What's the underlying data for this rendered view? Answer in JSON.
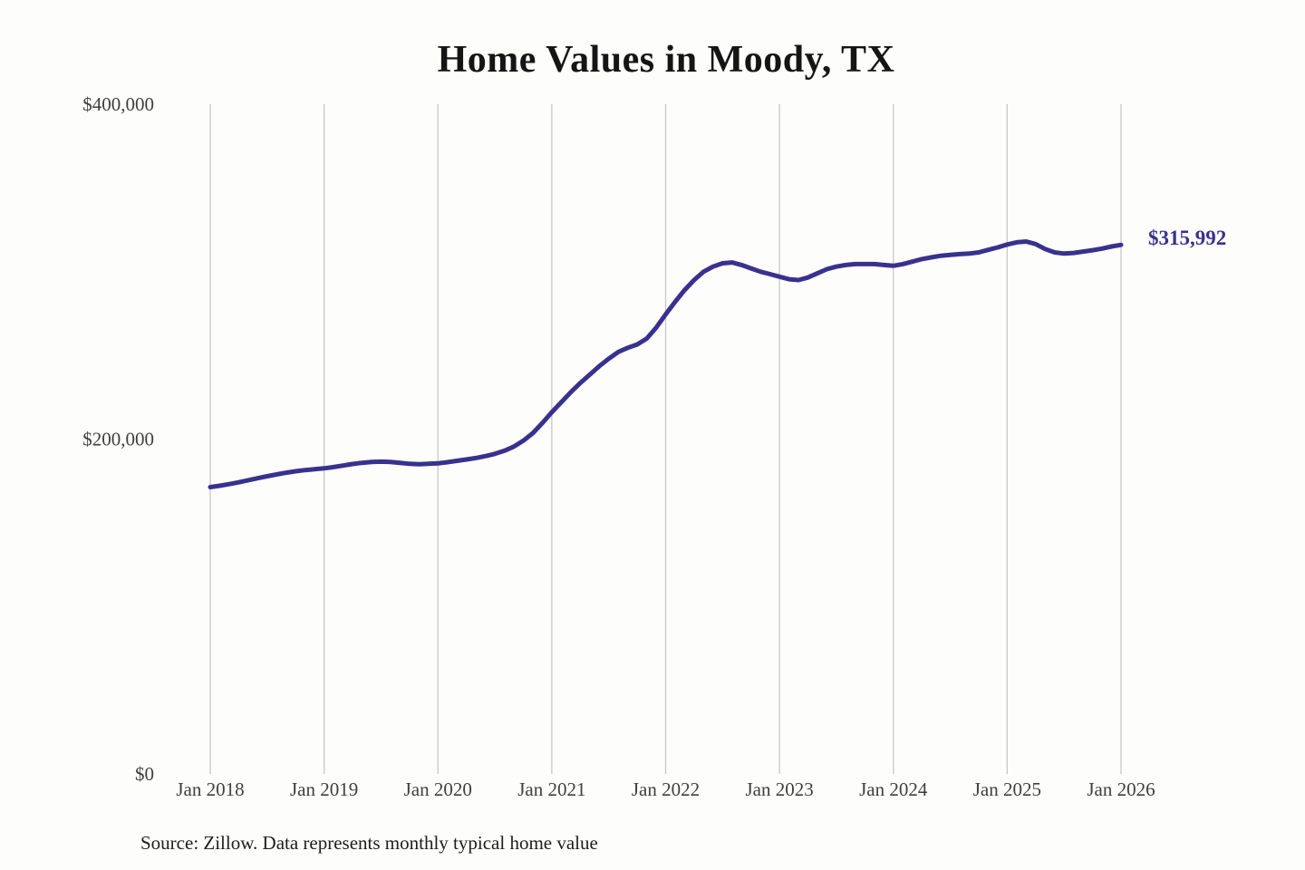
{
  "page": {
    "title": "Home Values in Moody, TX",
    "source_note": "Source: Zillow. Data represents monthly typical home value"
  },
  "chart_data": {
    "type": "line",
    "title": "Home Values in Moody, TX",
    "xlabel": "",
    "ylabel": "",
    "x_unit": "month",
    "x_start": "Jan 2018",
    "x_end": "Jan 2026",
    "x_tick_labels": [
      "Jan 2018",
      "Jan 2019",
      "Jan 2020",
      "Jan 2021",
      "Jan 2022",
      "Jan 2023",
      "Jan 2024",
      "Jan 2025",
      "Jan 2026"
    ],
    "y_ticks": [
      {
        "label": "$0",
        "value": 0
      },
      {
        "label": "$200,000",
        "value": 200000
      },
      {
        "label": "$400,000",
        "value": 400000
      }
    ],
    "ylim": [
      0,
      400000
    ],
    "grid": "vertical",
    "legend": "none",
    "line_color": "#39318e",
    "grid_color": "#c8c8c8",
    "tick_label_color": "#3f3f3f",
    "end_label": "$315,992",
    "end_value": 315992,
    "source": "Source: Zillow. Data represents monthly typical home value",
    "series": [
      {
        "name": "Typical home value",
        "values": [
          171300,
          172100,
          173100,
          174200,
          175400,
          176600,
          177800,
          178900,
          179900,
          180800,
          181500,
          182000,
          182500,
          183300,
          184200,
          185100,
          185800,
          186300,
          186500,
          186300,
          185800,
          185200,
          185000,
          185200,
          185500,
          186200,
          187000,
          187800,
          188700,
          189800,
          191200,
          193000,
          195500,
          199000,
          203500,
          209500,
          216000,
          222000,
          228000,
          233500,
          238500,
          243500,
          248000,
          252000,
          254500,
          256500,
          260000,
          266500,
          274500,
          282000,
          289000,
          295000,
          300000,
          303000,
          305000,
          305500,
          304000,
          302000,
          300000,
          298500,
          297000,
          295500,
          295000,
          296500,
          299000,
          301500,
          303000,
          304000,
          304500,
          304500,
          304500,
          304000,
          303500,
          304500,
          306000,
          307500,
          308500,
          309500,
          310000,
          310500,
          310800,
          311500,
          313000,
          314500,
          316200,
          317500,
          318000,
          316500,
          313500,
          311500,
          310800,
          311200,
          312000,
          312800,
          313800,
          315000,
          315992
        ]
      }
    ]
  }
}
